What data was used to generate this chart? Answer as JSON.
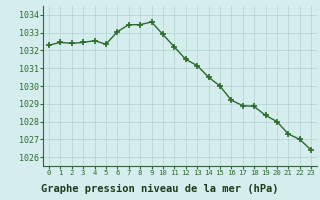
{
  "x": [
    0,
    1,
    2,
    3,
    4,
    5,
    6,
    7,
    8,
    9,
    10,
    11,
    12,
    13,
    14,
    15,
    16,
    17,
    18,
    19,
    20,
    21,
    22,
    23
  ],
  "y": [
    1032.3,
    1032.45,
    1032.4,
    1032.45,
    1032.55,
    1032.35,
    1033.05,
    1033.45,
    1033.45,
    1033.6,
    1032.9,
    1032.2,
    1031.5,
    1031.15,
    1030.5,
    1030.0,
    1029.2,
    1028.9,
    1028.85,
    1028.35,
    1028.0,
    1027.3,
    1027.0,
    1026.4
  ],
  "line_color": "#2d6a2d",
  "marker": "+",
  "marker_size": 4,
  "marker_color": "#2d6a2d",
  "bg_color": "#d5eeed",
  "grid_color": "#b0d4d0",
  "xlabel": "Graphe pression niveau de la mer (hPa)",
  "xlabel_color": "#2d5a1e",
  "tick_color": "#2d6a2d",
  "ytick_labels": [
    1026,
    1027,
    1028,
    1029,
    1030,
    1031,
    1032,
    1033,
    1034
  ],
  "ylim": [
    1025.5,
    1034.5
  ],
  "xlim": [
    -0.5,
    23.5
  ],
  "xtick_labels": [
    "0",
    "1",
    "2",
    "3",
    "4",
    "5",
    "6",
    "7",
    "8",
    "9",
    "10",
    "11",
    "12",
    "13",
    "14",
    "15",
    "16",
    "17",
    "18",
    "19",
    "20",
    "21",
    "22",
    "23"
  ],
  "line_width": 1.0,
  "bottom_bg": "#6dbf6d"
}
